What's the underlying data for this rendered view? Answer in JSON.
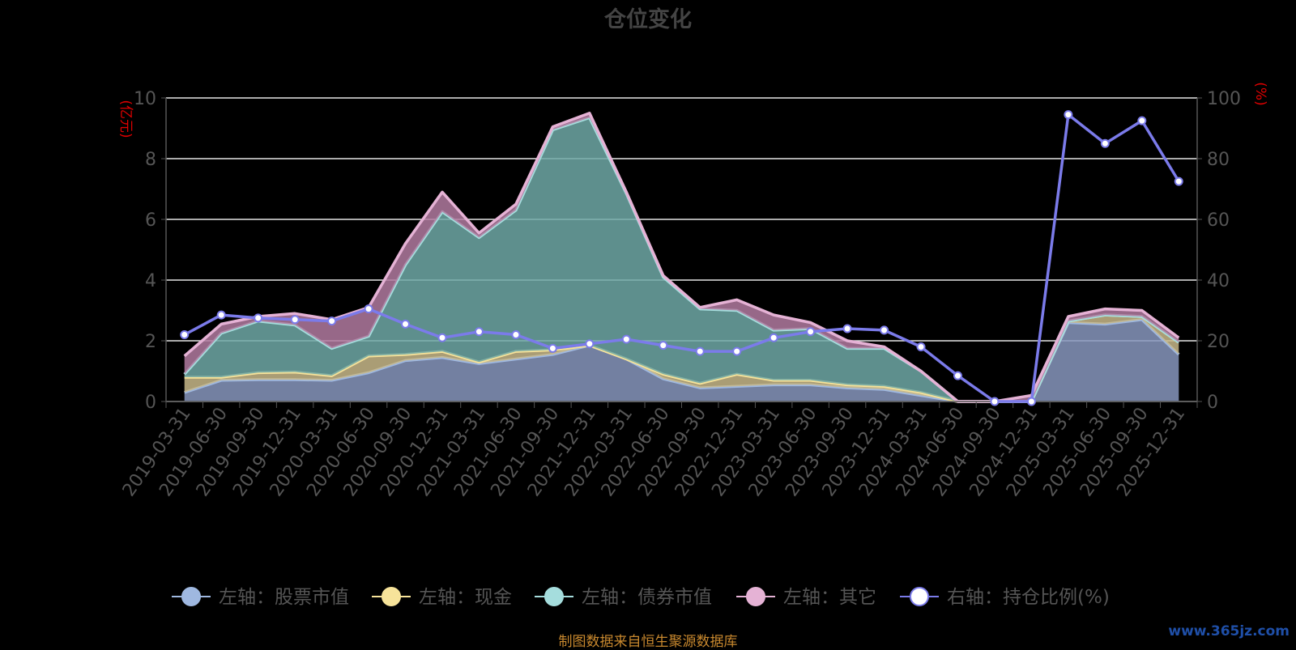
{
  "page": {
    "title": "仓位变化",
    "footer": "制图数据来自恒生聚源数据库",
    "watermark": "www.365jz.com"
  },
  "chart_data": {
    "type": "area",
    "title": "仓位变化",
    "left_axis_unit": "(亿元)",
    "right_axis_unit": "(%)",
    "ylim_left": [
      0,
      10
    ],
    "ylim_right": [
      0,
      100
    ],
    "left_ticks": [
      "0",
      "2",
      "4",
      "6",
      "8",
      "10"
    ],
    "right_ticks": [
      "0",
      "20",
      "40",
      "60",
      "80",
      "100"
    ],
    "grid": true,
    "stacked": true,
    "legend_position": "bottom",
    "categories": [
      "2019-03-31",
      "2019-06-30",
      "2019-09-30",
      "2019-12-31",
      "2020-03-31",
      "2020-06-30",
      "2020-09-30",
      "2020-12-31",
      "2021-03-31",
      "2021-06-30",
      "2021-09-30",
      "2021-12-31",
      "2022-03-31",
      "2022-06-30",
      "2022-09-30",
      "2022-12-31",
      "2023-03-31",
      "2023-06-30",
      "2023-09-30",
      "2023-12-31",
      "2024-03-31",
      "2024-06-30",
      "2024-09-30",
      "2024-12-31",
      "2025-03-31",
      "2025-06-30",
      "2025-09-30",
      "2025-12-31"
    ],
    "series": [
      {
        "name": "左轴：股票市值",
        "axis": "left",
        "color": "#9fb8e0",
        "values": [
          0.3,
          0.7,
          0.72,
          0.72,
          0.7,
          0.95,
          1.35,
          1.45,
          1.25,
          1.4,
          1.55,
          1.85,
          1.4,
          0.75,
          0.45,
          0.5,
          0.55,
          0.55,
          0.45,
          0.4,
          0.2,
          0,
          0,
          0,
          2.6,
          2.55,
          2.7,
          1.55
        ]
      },
      {
        "name": "左轴：现金",
        "axis": "left",
        "color": "#f7e39a",
        "values": [
          0.5,
          0.1,
          0.23,
          0.25,
          0.15,
          0.55,
          0.2,
          0.2,
          0.05,
          0.25,
          0.15,
          0,
          0,
          0.15,
          0.15,
          0.4,
          0.15,
          0.15,
          0.1,
          0.1,
          0.1,
          0,
          0,
          0,
          0.05,
          0.3,
          0.1,
          0.4
        ]
      },
      {
        "name": "左轴：债券市值",
        "axis": "left",
        "color": "#a5dddd",
        "values": [
          0.1,
          1.45,
          1.7,
          1.55,
          0.9,
          0.65,
          2.95,
          4.6,
          4.1,
          4.65,
          7.25,
          7.5,
          5.45,
          3.2,
          2.45,
          2.1,
          1.65,
          1.7,
          1.2,
          1.25,
          0.7,
          0,
          0,
          0,
          0,
          0,
          0,
          0
        ]
      },
      {
        "name": "左轴：其它",
        "axis": "left",
        "color": "#e5b2d5",
        "values": [
          0.6,
          0.3,
          0.15,
          0.38,
          0.95,
          0.95,
          0.7,
          0.65,
          0.15,
          0.2,
          0.1,
          0.15,
          0.05,
          0.05,
          0.05,
          0.35,
          0.5,
          0.2,
          0.25,
          0.05,
          0,
          0,
          0,
          0.2,
          0.15,
          0.2,
          0.2,
          0.15
        ]
      },
      {
        "name": "右轴：持仓比例(%)",
        "axis": "right",
        "color": "#7b7bea",
        "values": [
          22,
          28.5,
          27.5,
          27,
          26.5,
          30.5,
          25.5,
          21,
          23,
          22,
          17.5,
          19,
          20.5,
          18.5,
          16.5,
          16.5,
          21,
          23,
          24,
          23.5,
          18,
          8.5,
          0,
          0,
          94.5,
          85,
          92.5,
          72.5
        ]
      }
    ]
  }
}
